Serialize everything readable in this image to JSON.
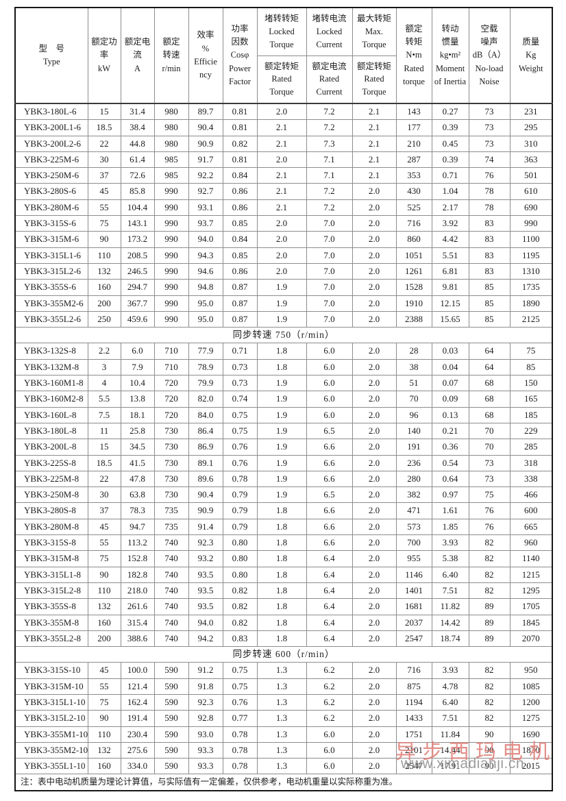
{
  "header": {
    "keys": [
      "model",
      "rated_power_kw",
      "rated_current_a",
      "rated_speed_rpm",
      "efficiency_pct",
      "power_factor",
      "locked_torque_ratio",
      "locked_current_ratio",
      "max_torque_ratio",
      "rated_torque_nm",
      "moment_of_inertia",
      "noload_noise_db",
      "weight_kg"
    ],
    "cols": [
      {
        "lines": [
          "型　号",
          "Type"
        ]
      },
      {
        "lines": [
          "额定功",
          "率",
          "kW"
        ]
      },
      {
        "lines": [
          "额定电",
          "流",
          "A"
        ]
      },
      {
        "lines": [
          "额定",
          "转速",
          "r/min"
        ]
      },
      {
        "lines": [
          "效率",
          "%",
          "Efficie",
          "ncy"
        ]
      },
      {
        "lines": [
          "功率",
          "因数",
          "Cosφ",
          "Power",
          "Factor"
        ]
      },
      {
        "top": [
          "堵转转矩",
          "Locked",
          "Torque"
        ],
        "bottom": [
          "额定转矩",
          "Rated",
          "Torque"
        ]
      },
      {
        "top": [
          "堵转电流",
          "Locked",
          "Current"
        ],
        "bottom": [
          "额定电流",
          "Rated",
          "Current"
        ]
      },
      {
        "top": [
          "最大转矩",
          "Max.",
          "Torque"
        ],
        "bottom": [
          "额定转矩",
          "Rated",
          "Torque"
        ]
      },
      {
        "lines": [
          "额定",
          "转矩",
          "N•m",
          "Rated",
          "torque"
        ]
      },
      {
        "lines": [
          "转动",
          "惯量",
          "kg•m²",
          "Moment",
          "of Inertia"
        ]
      },
      {
        "lines": [
          "空载",
          "噪声",
          "dB（A）",
          "No-load",
          "Noise"
        ]
      },
      {
        "lines": [
          "质量",
          "Kg",
          "Weight"
        ]
      }
    ]
  },
  "sections": [
    {
      "title": null,
      "rows": [
        [
          "YBK3-180L-6",
          "15",
          "31.4",
          "980",
          "89.7",
          "0.81",
          "2.0",
          "7.2",
          "2.1",
          "143",
          "0.27",
          "73",
          "231"
        ],
        [
          "YBK3-200L1-6",
          "18.5",
          "38.4",
          "980",
          "90.4",
          "0.81",
          "2.1",
          "7.2",
          "2.1",
          "177",
          "0.39",
          "73",
          "295"
        ],
        [
          "YBK3-200L2-6",
          "22",
          "44.8",
          "980",
          "90.9",
          "0.82",
          "2.1",
          "7.3",
          "2.1",
          "210",
          "0.45",
          "73",
          "310"
        ],
        [
          "YBK3-225M-6",
          "30",
          "61.4",
          "985",
          "91.7",
          "0.81",
          "2.0",
          "7.1",
          "2.1",
          "287",
          "0.39",
          "74",
          "363"
        ],
        [
          "YBK3-250M-6",
          "37",
          "72.6",
          "985",
          "92.2",
          "0.84",
          "2.1",
          "7.1",
          "2.1",
          "353",
          "0.71",
          "76",
          "501"
        ],
        [
          "YBK3-280S-6",
          "45",
          "85.8",
          "990",
          "92.7",
          "0.86",
          "2.1",
          "7.2",
          "2.0",
          "430",
          "1.04",
          "78",
          "610"
        ],
        [
          "YBK3-280M-6",
          "55",
          "104.4",
          "990",
          "93.1",
          "0.86",
          "2.1",
          "7.2",
          "2.0",
          "525",
          "2.17",
          "78",
          "690"
        ],
        [
          "YBK3-315S-6",
          "75",
          "143.1",
          "990",
          "93.7",
          "0.85",
          "2.0",
          "7.0",
          "2.0",
          "716",
          "3.92",
          "83",
          "990"
        ],
        [
          "YBK3-315M-6",
          "90",
          "173.2",
          "990",
          "94.0",
          "0.84",
          "2.0",
          "7.0",
          "2.0",
          "860",
          "4.42",
          "83",
          "1100"
        ],
        [
          "YBK3-315L1-6",
          "110",
          "208.5",
          "990",
          "94.3",
          "0.85",
          "2.0",
          "7.0",
          "2.0",
          "1051",
          "5.51",
          "83",
          "1195"
        ],
        [
          "YBK3-315L2-6",
          "132",
          "246.5",
          "990",
          "94.6",
          "0.86",
          "2.0",
          "7.0",
          "2.0",
          "1261",
          "6.81",
          "83",
          "1310"
        ],
        [
          "YBK3-355S-6",
          "160",
          "294.7",
          "990",
          "94.8",
          "0.87",
          "1.9",
          "7.0",
          "2.0",
          "1528",
          "9.81",
          "85",
          "1735"
        ],
        [
          "YBK3-355M2-6",
          "200",
          "367.7",
          "990",
          "95.0",
          "0.87",
          "1.9",
          "7.0",
          "2.0",
          "1910",
          "12.15",
          "85",
          "1890"
        ],
        [
          "YBK3-355L2-6",
          "250",
          "459.6",
          "990",
          "95.0",
          "0.87",
          "1.9",
          "7.0",
          "2.0",
          "2388",
          "15.65",
          "85",
          "2125"
        ]
      ]
    },
    {
      "title": "同步转速 750（r/min）",
      "rows": [
        [
          "YBK3-132S-8",
          "2.2",
          "6.0",
          "710",
          "77.9",
          "0.71",
          "1.8",
          "6.0",
          "2.0",
          "28",
          "0.03",
          "64",
          "75"
        ],
        [
          "YBK3-132M-8",
          "3",
          "7.9",
          "710",
          "78.9",
          "0.73",
          "1.8",
          "6.0",
          "2.0",
          "38",
          "0.04",
          "64",
          "85"
        ],
        [
          "YBK3-160M1-8",
          "4",
          "10.4",
          "720",
          "79.9",
          "0.73",
          "1.9",
          "6.0",
          "2.0",
          "51",
          "0.07",
          "68",
          "150"
        ],
        [
          "YBK3-160M2-8",
          "5.5",
          "13.8",
          "720",
          "82.0",
          "0.74",
          "1.9",
          "6.0",
          "2.0",
          "70",
          "0.09",
          "68",
          "165"
        ],
        [
          "YBK3-160L-8",
          "7.5",
          "18.1",
          "720",
          "84.0",
          "0.75",
          "1.9",
          "6.0",
          "2.0",
          "96",
          "0.13",
          "68",
          "185"
        ],
        [
          "YBK3-180L-8",
          "11",
          "25.8",
          "730",
          "86.4",
          "0.75",
          "1.9",
          "6.5",
          "2.0",
          "140",
          "0.21",
          "70",
          "229"
        ],
        [
          "YBK3-200L-8",
          "15",
          "34.5",
          "730",
          "86.9",
          "0.76",
          "1.9",
          "6.6",
          "2.0",
          "191",
          "0.36",
          "70",
          "285"
        ],
        [
          "YBK3-225S-8",
          "18.5",
          "41.5",
          "730",
          "89.1",
          "0.76",
          "1.9",
          "6.6",
          "2.0",
          "236",
          "0.54",
          "73",
          "318"
        ],
        [
          "YBK3-225M-8",
          "22",
          "47.8",
          "730",
          "89.6",
          "0.78",
          "1.9",
          "6.6",
          "2.0",
          "280",
          "0.64",
          "73",
          "338"
        ],
        [
          "YBK3-250M-8",
          "30",
          "63.8",
          "730",
          "90.4",
          "0.79",
          "1.9",
          "6.5",
          "2.0",
          "382",
          "0.97",
          "75",
          "466"
        ],
        [
          "YBK3-280S-8",
          "37",
          "78.3",
          "735",
          "90.9",
          "0.79",
          "1.8",
          "6.6",
          "2.0",
          "471",
          "1.61",
          "76",
          "600"
        ],
        [
          "YBK3-280M-8",
          "45",
          "94.7",
          "735",
          "91.4",
          "0.79",
          "1.8",
          "6.6",
          "2.0",
          "573",
          "1.85",
          "76",
          "665"
        ],
        [
          "YBK3-315S-8",
          "55",
          "113.2",
          "740",
          "92.3",
          "0.80",
          "1.8",
          "6.6",
          "2.0",
          "700",
          "3.93",
          "82",
          "960"
        ],
        [
          "YBK3-315M-8",
          "75",
          "152.8",
          "740",
          "93.2",
          "0.80",
          "1.8",
          "6.4",
          "2.0",
          "955",
          "5.38",
          "82",
          "1140"
        ],
        [
          "YBK3-315L1-8",
          "90",
          "182.8",
          "740",
          "93.5",
          "0.80",
          "1.8",
          "6.4",
          "2.0",
          "1146",
          "6.40",
          "82",
          "1215"
        ],
        [
          "YBK3-315L2-8",
          "110",
          "218.0",
          "740",
          "93.5",
          "0.82",
          "1.8",
          "6.4",
          "2.0",
          "1401",
          "7.51",
          "82",
          "1295"
        ],
        [
          "YBK3-355S-8",
          "132",
          "261.6",
          "740",
          "93.5",
          "0.82",
          "1.8",
          "6.4",
          "2.0",
          "1681",
          "11.82",
          "89",
          "1705"
        ],
        [
          "YBK3-355M-8",
          "160",
          "315.4",
          "740",
          "94.0",
          "0.82",
          "1.8",
          "6.4",
          "2.0",
          "2037",
          "14.42",
          "89",
          "1845"
        ],
        [
          "YBK3-355L2-8",
          "200",
          "388.6",
          "740",
          "94.2",
          "0.83",
          "1.8",
          "6.4",
          "2.0",
          "2547",
          "18.74",
          "89",
          "2070"
        ]
      ]
    },
    {
      "title": "同步转速 600（r/min）",
      "rows": [
        [
          "YBK3-315S-10",
          "45",
          "100.0",
          "590",
          "91.2",
          "0.75",
          "1.3",
          "6.2",
          "2.0",
          "716",
          "3.93",
          "82",
          "950"
        ],
        [
          "YBK3-315M-10",
          "55",
          "121.4",
          "590",
          "91.8",
          "0.75",
          "1.3",
          "6.2",
          "2.0",
          "875",
          "4.78",
          "82",
          "1085"
        ],
        [
          "YBK3-315L1-10",
          "75",
          "162.4",
          "590",
          "92.3",
          "0.76",
          "1.3",
          "6.2",
          "2.0",
          "1194",
          "6.40",
          "82",
          "1200"
        ],
        [
          "YBK3-315L2-10",
          "90",
          "191.4",
          "590",
          "92.8",
          "0.77",
          "1.3",
          "6.2",
          "2.0",
          "1433",
          "7.51",
          "82",
          "1275"
        ],
        [
          "YBK3-355M1-10",
          "110",
          "230.4",
          "590",
          "93.0",
          "0.78",
          "1.3",
          "6.0",
          "2.0",
          "1751",
          "11.84",
          "90",
          "1690"
        ],
        [
          "YBK3-355M2-10",
          "132",
          "275.6",
          "590",
          "93.3",
          "0.78",
          "1.3",
          "6.0",
          "2.0",
          "2101",
          "14.44",
          "90",
          "1830"
        ],
        [
          "YBK3-355L1-10",
          "160",
          "334.0",
          "590",
          "93.3",
          "0.78",
          "1.3",
          "6.0",
          "2.0",
          "2547",
          "17.91",
          "90",
          "2015"
        ]
      ]
    }
  ],
  "note": "注：表中电动机质量为理论计算值，与实际值有一定偏差，仅供参考，电动机重量以实际称重为准。",
  "watermark": {
    "brand": "异步西玛电机",
    "url": "www.ximadianji.cn"
  },
  "colors": {
    "outer_border": "#151515",
    "inner_border": "#8c8c8c",
    "text": "#1c1c1c",
    "watermark_red": "#e0837d",
    "watermark_url_gray": "#9c9c9c"
  }
}
